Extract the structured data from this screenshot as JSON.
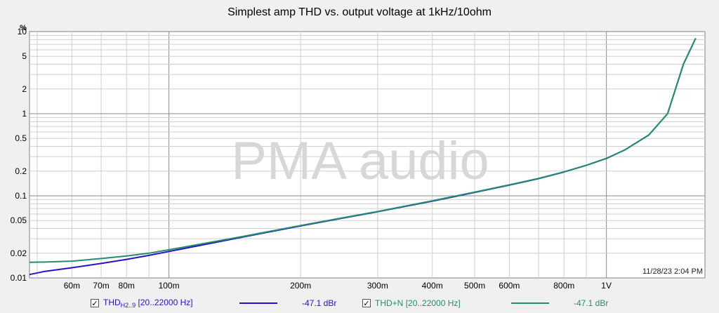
{
  "chart_data": {
    "type": "line",
    "title": "Simplest amp THD vs. output voltage at 1kHz/10ohm",
    "ylabel": "%",
    "xlabel": "",
    "x_scale": "log",
    "y_scale": "log",
    "xlim": [
      0.048,
      1.68
    ],
    "ylim": [
      0.01,
      10
    ],
    "x_ticks": [
      0.06,
      0.07,
      0.08,
      0.1,
      0.2,
      0.3,
      0.4,
      0.5,
      0.6,
      0.8,
      1
    ],
    "x_tick_labels": [
      "60m",
      "70m",
      "80m",
      "100m",
      "200m",
      "300m",
      "400m",
      "500m",
      "600m",
      "800m",
      "1V"
    ],
    "y_ticks": [
      0.01,
      0.02,
      0.05,
      0.1,
      0.2,
      0.5,
      1,
      2,
      5,
      10
    ],
    "y_tick_labels": [
      "0.01",
      "0.02",
      "0.05",
      "0.1",
      "0.2",
      "0.5",
      "1",
      "2",
      "5",
      "10"
    ],
    "grid": true,
    "watermark": "PMA audio",
    "timestamp": "11/28/23 2:04 PM",
    "series": [
      {
        "name": "THD",
        "name_sub": "H2..9",
        "range": "[20..22000 Hz]",
        "level": "-47.1 dBr",
        "color": "#2a0fd0",
        "x": [
          0.048,
          0.052,
          0.06,
          0.07,
          0.08,
          0.09,
          0.1,
          0.15,
          0.2,
          0.3,
          0.4,
          0.5,
          0.6,
          0.7,
          0.8,
          0.9,
          1.0,
          1.1,
          1.25,
          1.38,
          1.5,
          1.6
        ],
        "y": [
          0.011,
          0.012,
          0.0133,
          0.015,
          0.0168,
          0.0188,
          0.021,
          0.032,
          0.043,
          0.064,
          0.086,
          0.11,
          0.135,
          0.162,
          0.195,
          0.235,
          0.285,
          0.36,
          0.55,
          1.0,
          4.0,
          8.3
        ]
      },
      {
        "name": "THD+N",
        "range": "[20..22000 Hz]",
        "level": "-47.1 dBr",
        "color": "#1f8f6f",
        "x": [
          0.048,
          0.052,
          0.06,
          0.07,
          0.08,
          0.09,
          0.1,
          0.15,
          0.2,
          0.3,
          0.4,
          0.5,
          0.6,
          0.7,
          0.8,
          0.9,
          1.0,
          1.1,
          1.25,
          1.38,
          1.5,
          1.6
        ],
        "y": [
          0.0155,
          0.0156,
          0.016,
          0.0172,
          0.0185,
          0.02,
          0.022,
          0.0325,
          0.0435,
          0.0645,
          0.087,
          0.111,
          0.136,
          0.163,
          0.196,
          0.236,
          0.286,
          0.36,
          0.55,
          1.0,
          4.0,
          8.3
        ]
      }
    ]
  },
  "legend": {
    "check_glyph": "✓"
  }
}
